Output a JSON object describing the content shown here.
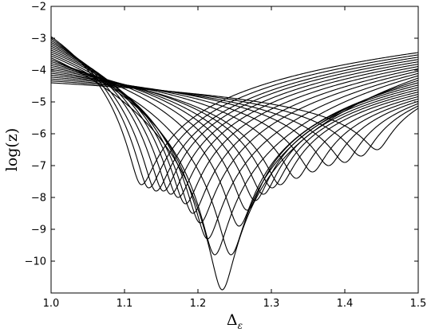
{
  "chart_data": {
    "type": "line",
    "xlabel": "Δ",
    "xlabel_sub": "ε",
    "ylabel": "log(z)",
    "xlim": [
      1.0,
      1.5
    ],
    "ylim": [
      -11,
      -2
    ],
    "xticks": [
      "1.0",
      "1.1",
      "1.2",
      "1.3",
      "1.4",
      "1.5"
    ],
    "yticks": [
      "−2",
      "−3",
      "−4",
      "−5",
      "−6",
      "−7",
      "−8",
      "−9",
      "−10"
    ],
    "grid": false,
    "legend": "none",
    "line_color": "#000000",
    "curve_count": 25,
    "curve_minima": {
      "delta": [
        1.123,
        1.133,
        1.143,
        1.153,
        1.163,
        1.173,
        1.183,
        1.193,
        1.203,
        1.213,
        1.223,
        1.233,
        1.245,
        1.256,
        1.267,
        1.278,
        1.289,
        1.301,
        1.312,
        1.334,
        1.356,
        1.378,
        1.4,
        1.422,
        1.444
      ],
      "logz": [
        -7.6,
        -7.7,
        -7.8,
        -7.8,
        -7.9,
        -8.0,
        -8.2,
        -8.5,
        -8.8,
        -9.3,
        -9.8,
        -10.9,
        -9.8,
        -8.9,
        -8.4,
        -8.1,
        -7.9,
        -7.7,
        -7.6,
        -7.4,
        -7.2,
        -7.0,
        -6.9,
        -6.7,
        -6.5
      ]
    },
    "left_edge_logz": {
      "start": -2.95,
      "end": -4.4
    },
    "right_edge_logz": {
      "start": -3.45,
      "end": -5.2
    }
  }
}
